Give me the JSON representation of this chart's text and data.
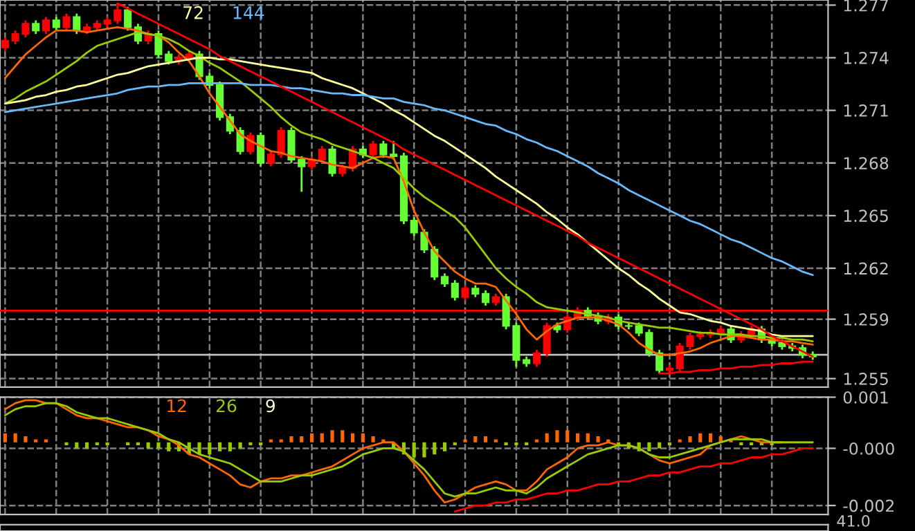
{
  "chart_data": [
    {
      "type": "candlestick",
      "categories": [
        null,
        null,
        null,
        null,
        null,
        null,
        null,
        null,
        null,
        null,
        null,
        null,
        null,
        null,
        null,
        null,
        null,
        null,
        null,
        null,
        null,
        null,
        null,
        null,
        null,
        null,
        null,
        null,
        null,
        null,
        null,
        null,
        null,
        null,
        null,
        null,
        null,
        null,
        null,
        null,
        null,
        null,
        null,
        null,
        null,
        null,
        null,
        null,
        null,
        null,
        null,
        null,
        null,
        null,
        null,
        null,
        null,
        null,
        null,
        null,
        null,
        null,
        null,
        null,
        null,
        null,
        null,
        null,
        null,
        null,
        null,
        null,
        null,
        null,
        null,
        null,
        null,
        null,
        null,
        null
      ],
      "ohlc": [
        [
          1.275,
          1.2756,
          1.2748,
          1.2754
        ],
        [
          1.2754,
          1.276,
          1.2752,
          1.2758
        ],
        [
          1.2758,
          1.2766,
          1.2756,
          1.2764
        ],
        [
          1.2764,
          1.2766,
          1.2758,
          1.276
        ],
        [
          1.276,
          1.2768,
          1.2758,
          1.2766
        ],
        [
          1.2766,
          1.2768,
          1.276,
          1.2762
        ],
        [
          1.2762,
          1.277,
          1.276,
          1.2768
        ],
        [
          1.2768,
          1.277,
          1.2758,
          1.276
        ],
        [
          1.276,
          1.2764,
          1.2758,
          1.2762
        ],
        [
          1.2762,
          1.2766,
          1.276,
          1.2764
        ],
        [
          1.2764,
          1.2768,
          1.2762,
          1.2766
        ],
        [
          1.2766,
          1.2776,
          1.2764,
          1.2772
        ],
        [
          1.2772,
          1.2774,
          1.276,
          1.2762
        ],
        [
          1.2762,
          1.2764,
          1.2752,
          1.2754
        ],
        [
          1.2754,
          1.276,
          1.2752,
          1.2758
        ],
        [
          1.2758,
          1.276,
          1.2744,
          1.2746
        ],
        [
          1.2746,
          1.2748,
          1.274,
          1.2742
        ],
        [
          1.2742,
          1.2746,
          1.274,
          1.2744
        ],
        [
          1.2744,
          1.2748,
          1.2742,
          1.2746
        ],
        [
          1.2746,
          1.2748,
          1.2731,
          1.2733
        ],
        [
          1.2733,
          1.2735,
          1.2726,
          1.2728
        ],
        [
          1.2728,
          1.273,
          1.2707,
          1.2709
        ],
        [
          1.2709,
          1.2711,
          1.2699,
          1.2701
        ],
        [
          1.2701,
          1.2703,
          1.2687,
          1.2689
        ],
        [
          1.2689,
          1.27,
          1.2687,
          1.2698
        ],
        [
          1.2698,
          1.27,
          1.268,
          1.2682
        ],
        [
          1.2682,
          1.2689,
          1.268,
          1.2687
        ],
        [
          1.2687,
          1.2703,
          1.2685,
          1.2701
        ],
        [
          1.2701,
          1.2703,
          1.2682,
          1.2684
        ],
        [
          1.2684,
          1.2686,
          1.2665,
          1.268
        ],
        [
          1.268,
          1.2686,
          1.2678,
          1.2684
        ],
        [
          1.2684,
          1.2692,
          1.2682,
          1.269
        ],
        [
          1.269,
          1.2692,
          1.2674,
          1.2676
        ],
        [
          1.2676,
          1.2681,
          1.2674,
          1.2679
        ],
        [
          1.2679,
          1.2692,
          1.2677,
          1.269
        ],
        [
          1.269,
          1.2692,
          1.2685,
          1.2687
        ],
        [
          1.2687,
          1.2695,
          1.2685,
          1.2693
        ],
        [
          1.2693,
          1.2695,
          1.2685,
          1.2687
        ],
        [
          1.2687,
          1.2695,
          1.2684,
          1.2686
        ],
        [
          1.2686,
          1.2688,
          1.2646,
          1.2648
        ],
        [
          1.2648,
          1.265,
          1.2639,
          1.2641
        ],
        [
          1.2641,
          1.2643,
          1.2629,
          1.2631
        ],
        [
          1.2631,
          1.2633,
          1.2613,
          1.2615
        ],
        [
          1.2615,
          1.2617,
          1.2609,
          1.2611
        ],
        [
          1.2611,
          1.2613,
          1.2601,
          1.2603
        ],
        [
          1.2603,
          1.261,
          1.2601,
          1.2608
        ],
        [
          1.2608,
          1.261,
          1.2603,
          1.2605
        ],
        [
          1.2605,
          1.2607,
          1.2598,
          1.26
        ],
        [
          1.26,
          1.2605,
          1.2598,
          1.2603
        ],
        [
          1.2603,
          1.2605,
          1.2584,
          1.2586
        ],
        [
          1.2586,
          1.2588,
          1.2562,
          1.2566
        ],
        [
          1.2566,
          1.2568,
          1.2562,
          1.2564
        ],
        [
          1.2564,
          1.2572,
          1.2562,
          1.257
        ],
        [
          1.257,
          1.2588,
          1.2568,
          1.2586
        ],
        [
          1.2586,
          1.2588,
          1.2582,
          1.2584
        ],
        [
          1.2584,
          1.2593,
          1.2582,
          1.2591
        ],
        [
          1.2591,
          1.2597,
          1.2589,
          1.2595
        ],
        [
          1.2595,
          1.2597,
          1.259,
          1.2592
        ],
        [
          1.2592,
          1.2594,
          1.2587,
          1.2589
        ],
        [
          1.2589,
          1.2593,
          1.2587,
          1.2591
        ],
        [
          1.2591,
          1.2593,
          1.2584,
          1.2586
        ],
        [
          1.2586,
          1.2588,
          1.2584,
          1.2586
        ],
        [
          1.2586,
          1.2588,
          1.258,
          1.2582
        ],
        [
          1.2582,
          1.2584,
          1.2568,
          1.257
        ],
        [
          1.257,
          1.2572,
          1.2558,
          1.256
        ],
        [
          1.256,
          1.2563,
          1.2558,
          1.2561
        ],
        [
          1.2561,
          1.2576,
          1.2559,
          1.2574
        ],
        [
          1.2574,
          1.2582,
          1.2572,
          1.258
        ],
        [
          1.258,
          1.2583,
          1.2578,
          1.2581
        ],
        [
          1.2581,
          1.2584,
          1.2579,
          1.2582
        ],
        [
          1.2582,
          1.2586,
          1.258,
          1.2584
        ],
        [
          1.2584,
          1.2586,
          1.2576,
          1.2578
        ],
        [
          1.2578,
          1.2583,
          1.2576,
          1.2581
        ],
        [
          1.2581,
          1.2586,
          1.2579,
          1.2584
        ],
        [
          1.2584,
          1.2586,
          1.2576,
          1.2578
        ],
        [
          1.2578,
          1.258,
          1.2574,
          1.2576
        ],
        [
          1.2576,
          1.2578,
          1.2572,
          1.2574
        ],
        [
          1.2574,
          1.2576,
          1.2571,
          1.2573
        ],
        [
          1.2573,
          1.2575,
          1.2567,
          1.2569
        ],
        [
          1.2569,
          1.2571,
          1.2566,
          1.2568
        ]
      ],
      "colors": [
        "#ff0000",
        "#ff0000",
        "#ff0000",
        "#66ff33",
        "#ff0000",
        "#66ff33",
        "#ff0000",
        "#66ff33",
        "#ff0000",
        "#ff0000",
        "#ff0000",
        "#ff0000",
        "#66ff33",
        "#66ff33",
        "#ff0000",
        "#66ff33",
        "#66ff33",
        "#ff0000",
        "#ff0000",
        "#66ff33",
        "#66ff33",
        "#66ff33",
        "#66ff33",
        "#66ff33",
        "#ff0000",
        "#66ff33",
        "#ff0000",
        "#ff0000",
        "#66ff33",
        "#66ff33",
        "#ff0000",
        "#ff0000",
        "#66ff33",
        "#ff0000",
        "#ff0000",
        "#66ff33",
        "#ff0000",
        "#66ff33",
        "#66ff33",
        "#66ff33",
        "#66ff33",
        "#66ff33",
        "#66ff33",
        "#66ff33",
        "#66ff33",
        "#ff0000",
        "#66ff33",
        "#66ff33",
        "#ff0000",
        "#66ff33",
        "#66ff33",
        "#66ff33",
        "#ff0000",
        "#ff0000",
        "#66ff33",
        "#ff0000",
        "#ff0000",
        "#66ff33",
        "#66ff33",
        "#ff0000",
        "#66ff33",
        "#66ff33",
        "#66ff33",
        "#66ff33",
        "#66ff33",
        "#ff0000",
        "#ff0000",
        "#ff0000",
        "#ff0000",
        "#ff0000",
        "#ff0000",
        "#66ff33",
        "#ff0000",
        "#ff0000",
        "#66ff33",
        "#66ff33",
        "#66ff33",
        "#66ff33",
        "#66ff33",
        "#66ff33"
      ],
      "series": [
        {
          "type": "line",
          "color": "#ff6600",
          "values": [
            1.2732,
            1.2739,
            1.2746,
            1.2751,
            1.2756,
            1.276,
            1.276,
            1.276,
            1.2759,
            1.276,
            1.2761,
            1.2762,
            1.2761,
            1.276,
            1.2758,
            1.2757,
            1.2753,
            1.2747,
            1.2742,
            1.2733,
            1.2723,
            1.2715,
            1.2707,
            1.2699,
            1.2695,
            1.2692,
            1.2689,
            1.2688,
            1.2686,
            1.2685,
            1.2684,
            1.2683,
            1.2681,
            1.268,
            1.2679,
            1.2682,
            1.2685,
            1.2686,
            1.2685,
            1.2671,
            1.2654,
            1.2641,
            1.263,
            1.2624,
            1.2618,
            1.2614,
            1.2611,
            1.2611,
            1.2609,
            1.2601,
            1.2593,
            1.2584,
            1.2578,
            1.2583,
            1.2587,
            1.2589,
            1.2591,
            1.2591,
            1.2591,
            1.2589,
            1.2587,
            1.2582,
            1.2576,
            1.2572,
            1.2569,
            1.2569,
            1.257,
            1.2571,
            1.2573,
            1.2576,
            1.2578,
            1.258,
            1.258,
            1.2579,
            1.2578,
            1.2578,
            1.2577,
            1.2577,
            1.2576,
            1.2575
          ]
        },
        {
          "type": "line",
          "color": "#99cc00",
          "values": [
            1.2717,
            1.272,
            1.2724,
            1.2727,
            1.273,
            1.2734,
            1.2738,
            1.2742,
            1.2747,
            1.2751,
            1.2753,
            1.2755,
            1.2757,
            1.2759,
            1.2758,
            1.2757,
            1.2755,
            1.2752,
            1.2748,
            1.2745,
            1.2741,
            1.2738,
            1.2734,
            1.273,
            1.2725,
            1.272,
            1.2715,
            1.2709,
            1.2704,
            1.27,
            1.2698,
            1.2696,
            1.2693,
            1.2691,
            1.2689,
            1.2687,
            1.2685,
            1.2682,
            1.2679,
            1.2673,
            1.2667,
            1.2662,
            1.2658,
            1.2654,
            1.265,
            1.2644,
            1.2636,
            1.2628,
            1.262,
            1.2614,
            1.2609,
            1.2605,
            1.26,
            1.2597,
            1.2596,
            1.2595,
            1.2594,
            1.2593,
            1.2592,
            1.2591,
            1.2589,
            1.2588,
            1.2587,
            1.2586,
            1.2585,
            1.2585,
            1.2584,
            1.2583,
            1.2582,
            1.2582,
            1.2581,
            1.2581,
            1.2581,
            1.258,
            1.258,
            1.2579,
            1.2579,
            1.2578,
            1.2578,
            1.2577
          ]
        },
        {
          "type": "line",
          "name": "72",
          "color": "#ffff99",
          "values": [
            1.2717,
            1.2718,
            1.2719,
            1.2721,
            1.2722,
            1.2724,
            1.2725,
            1.2727,
            1.2728,
            1.273,
            1.2732,
            1.2734,
            1.2735,
            1.2737,
            1.2739,
            1.274,
            1.2741,
            1.2742,
            1.2743,
            1.2744,
            1.2744,
            1.2743,
            1.2743,
            1.2742,
            1.2741,
            1.274,
            1.2739,
            1.2738,
            1.2737,
            1.2736,
            1.2735,
            1.2732,
            1.273,
            1.2728,
            1.2726,
            1.2723,
            1.272,
            1.2717,
            1.2713,
            1.271,
            1.2706,
            1.2702,
            1.2698,
            1.2695,
            1.2691,
            1.2687,
            1.2683,
            1.2679,
            1.2674,
            1.267,
            1.2666,
            1.2662,
            1.2658,
            1.2653,
            1.2649,
            1.2644,
            1.264,
            1.2635,
            1.263,
            1.2625,
            1.262,
            1.2616,
            1.2611,
            1.2607,
            1.2602,
            1.2598,
            1.2594,
            1.2593,
            1.2591,
            1.2589,
            1.2588,
            1.2586,
            1.2585,
            1.2584,
            1.2583,
            1.2581,
            1.258,
            1.258,
            1.258,
            1.258
          ]
        },
        {
          "type": "line",
          "name": "144",
          "color": "#66bbff",
          "values": [
            1.2712,
            1.2713,
            1.2714,
            1.2715,
            1.2716,
            1.2717,
            1.2718,
            1.2719,
            1.272,
            1.2721,
            1.2722,
            1.2723,
            1.2725,
            1.2726,
            1.2727,
            1.2727,
            1.2728,
            1.2728,
            1.2729,
            1.2729,
            1.2729,
            1.2729,
            1.2729,
            1.2729,
            1.2728,
            1.2728,
            1.2728,
            1.2727,
            1.2726,
            1.2726,
            1.2725,
            1.2724,
            1.2723,
            1.2723,
            1.2722,
            1.2722,
            1.2721,
            1.272,
            1.272,
            1.2718,
            1.2717,
            1.2716,
            1.2714,
            1.2713,
            1.2711,
            1.2709,
            1.2707,
            1.2705,
            1.2704,
            1.2701,
            1.2699,
            1.2696,
            1.2694,
            1.2691,
            1.2689,
            1.2686,
            1.2683,
            1.268,
            1.2676,
            1.2673,
            1.267,
            1.2666,
            1.2663,
            1.266,
            1.2657,
            1.2654,
            1.2651,
            1.2648,
            1.2646,
            1.2643,
            1.264,
            1.2637,
            1.2635,
            1.2632,
            1.2629,
            1.2626,
            1.2624,
            1.2621,
            1.2618,
            1.2616
          ]
        },
        {
          "type": "line",
          "color": "#ff0000",
          "values": [
            null,
            null,
            null,
            null,
            null,
            null,
            null,
            null,
            null,
            null,
            null,
            1.2776,
            1.2773,
            1.277,
            1.2767,
            1.2764,
            1.2761,
            1.2758,
            1.2755,
            1.2752,
            1.2749,
            1.2745,
            1.2742,
            1.2739,
            1.2736,
            1.2733,
            1.273,
            1.2727,
            1.2724,
            1.2721,
            1.2718,
            1.2715,
            1.2712,
            1.2709,
            1.2706,
            1.2703,
            1.27,
            1.2697,
            1.2694,
            1.269,
            1.2687,
            1.2684,
            1.2681,
            1.2678,
            1.2675,
            1.2672,
            1.2669,
            1.2666,
            1.2663,
            1.266,
            1.2657,
            1.2654,
            1.2651,
            1.2648,
            1.2645,
            1.2642,
            1.2639,
            1.2635,
            1.2632,
            1.2629,
            1.2626,
            1.2623,
            1.262,
            1.2617,
            1.2614,
            1.2611,
            1.2608,
            1.2605,
            1.2602,
            1.2599,
            1.2596,
            1.2593,
            1.259,
            1.2587,
            1.2584,
            1.258,
            1.2577,
            1.2574,
            1.2571,
            1.2568
          ]
        },
        {
          "type": "line",
          "color": "#ff0000",
          "values": [
            null,
            null,
            null,
            null,
            null,
            null,
            null,
            null,
            null,
            null,
            null,
            null,
            null,
            null,
            null,
            null,
            null,
            null,
            null,
            null,
            null,
            null,
            null,
            null,
            null,
            null,
            null,
            null,
            null,
            null,
            null,
            null,
            null,
            null,
            null,
            null,
            null,
            null,
            null,
            null,
            null,
            null,
            null,
            null,
            null,
            null,
            null,
            null,
            null,
            null,
            null,
            null,
            null,
            null,
            null,
            null,
            null,
            null,
            null,
            null,
            null,
            null,
            null,
            null,
            1.2558,
            1.2558,
            1.2559,
            1.2559,
            1.256,
            1.256,
            1.2561,
            1.2561,
            1.2562,
            1.2562,
            1.2563,
            1.2563,
            1.2564,
            1.2564,
            1.2565,
            1.2565
          ]
        }
      ],
      "ref_lines": [
        {
          "axis": "y",
          "value": 1.2595,
          "color": "#ff0000"
        },
        {
          "axis": "y",
          "value": 1.2569,
          "color": "#c0c0c0"
        }
      ],
      "ylim": [
        1.255,
        1.2778
      ],
      "yticks": [
        {
          "value": 1.2775,
          "label": "1.277"
        },
        {
          "value": 1.2744,
          "label": "1.274"
        },
        {
          "value": 1.2713,
          "label": "1.271"
        },
        {
          "value": 1.2682,
          "label": "1.268"
        },
        {
          "value": 1.2651,
          "label": "1.265"
        },
        {
          "value": 1.262,
          "label": "1.262"
        },
        {
          "value": 1.259,
          "label": "1.259"
        },
        {
          "value": 1.2555,
          "label": "1.255"
        }
      ],
      "tick_labels": "y",
      "grid": true
    },
    {
      "type": "bar",
      "categories": [
        null,
        null,
        null,
        null,
        null,
        null,
        null,
        null,
        null,
        null,
        null,
        null,
        null,
        null,
        null,
        null,
        null,
        null,
        null,
        null,
        null,
        null,
        null,
        null,
        null,
        null,
        null,
        null,
        null,
        null,
        null,
        null,
        null,
        null,
        null,
        null,
        null,
        null,
        null,
        null,
        null,
        null,
        null,
        null,
        null,
        null,
        null,
        null,
        null,
        null,
        null,
        null,
        null,
        null,
        null,
        null,
        null,
        null,
        null,
        null,
        null,
        null,
        null,
        null,
        null,
        null,
        null,
        null,
        null,
        null,
        null,
        null,
        null,
        null,
        null,
        null,
        null,
        null,
        null,
        null
      ],
      "values": [
        0.0003,
        0.0003,
        0.0002,
        0.0001,
        0.0001,
        0.0,
        -0.0001,
        -0.0002,
        -0.0002,
        -0.0001,
        -0.0001,
        0.0,
        -0.0001,
        -0.0001,
        -0.0002,
        -0.0002,
        -0.0003,
        -0.0003,
        -0.0004,
        -0.0004,
        -0.0004,
        -0.0003,
        -0.0003,
        -0.0002,
        -0.0001,
        -0.0001,
        0.0001,
        0.0001,
        0.0002,
        0.0002,
        0.0003,
        0.0003,
        0.0004,
        0.0004,
        0.0003,
        0.0003,
        0.0002,
        0.0001,
        -0.0002,
        -0.0004,
        -0.0005,
        -0.0005,
        -0.0004,
        -0.0003,
        -0.0001,
        0.0001,
        0.0002,
        0.0002,
        0.0001,
        -0.0001,
        -0.0001,
        -0.0001,
        0.0001,
        0.0003,
        0.0004,
        0.0004,
        0.0003,
        0.0003,
        0.0002,
        0.0001,
        -0.0001,
        -0.0002,
        -0.0003,
        -0.0003,
        -0.0002,
        -0.0001,
        0.0001,
        0.0002,
        0.0003,
        0.0003,
        0.0002,
        0.0001,
        -0.0001,
        -0.0001,
        -0.0001,
        -0.0001,
        0.0,
        0.0,
        0.0,
        0.0
      ],
      "colors": [
        "#ff6600",
        "#ff6600",
        "#ff6600",
        "#ff6600",
        "#ff6600",
        "#ff6600",
        "#99cc00",
        "#99cc00",
        "#99cc00",
        "#99cc00",
        "#99cc00",
        "#99cc00",
        "#99cc00",
        "#99cc00",
        "#99cc00",
        "#99cc00",
        "#99cc00",
        "#99cc00",
        "#99cc00",
        "#99cc00",
        "#99cc00",
        "#99cc00",
        "#99cc00",
        "#99cc00",
        "#99cc00",
        "#99cc00",
        "#ff6600",
        "#ff6600",
        "#ff6600",
        "#ff6600",
        "#ff6600",
        "#ff6600",
        "#ff6600",
        "#ff6600",
        "#ff6600",
        "#ff6600",
        "#ff6600",
        "#ff6600",
        "#99cc00",
        "#99cc00",
        "#99cc00",
        "#99cc00",
        "#99cc00",
        "#99cc00",
        "#99cc00",
        "#ff6600",
        "#ff6600",
        "#ff6600",
        "#ff6600",
        "#99cc00",
        "#99cc00",
        "#99cc00",
        "#ff6600",
        "#ff6600",
        "#ff6600",
        "#ff6600",
        "#ff6600",
        "#ff6600",
        "#ff6600",
        "#ff6600",
        "#99cc00",
        "#99cc00",
        "#99cc00",
        "#99cc00",
        "#99cc00",
        "#99cc00",
        "#ff6600",
        "#ff6600",
        "#ff6600",
        "#ff6600",
        "#ff6600",
        "#ff6600",
        "#99cc00",
        "#99cc00",
        "#99cc00",
        "#99cc00",
        "#99cc00",
        "#99cc00",
        "#99cc00",
        "#99cc00"
      ],
      "series": [
        {
          "type": "line",
          "name": "12",
          "color": "#ff6600",
          "values": [
            0.0011,
            0.0013,
            0.0014,
            0.0014,
            0.0013,
            0.0013,
            0.0011,
            0.0009,
            0.0008,
            0.0008,
            0.0007,
            0.0006,
            0.0005,
            0.0005,
            0.0004,
            0.0002,
            0.0001,
            -0.0001,
            -0.0004,
            -0.0005,
            -0.0007,
            -0.0009,
            -0.0011,
            -0.0014,
            -0.0015,
            -0.0013,
            -0.0012,
            -0.0012,
            -0.0011,
            -0.0011,
            -0.001,
            -0.0009,
            -0.0008,
            -0.0006,
            -0.0004,
            -0.0002,
            -0.0001,
            0.0,
            0.0,
            -0.0003,
            -0.0007,
            -0.0011,
            -0.0016,
            -0.002,
            -0.0019,
            -0.0017,
            -0.0015,
            -0.0014,
            -0.0013,
            -0.0014,
            -0.0016,
            -0.0016,
            -0.0013,
            -0.0009,
            -0.0007,
            -0.0005,
            -0.0002,
            -0.0001,
            -0.0001,
            0.0,
            -0.0001,
            -0.0001,
            -0.0002,
            -0.0004,
            -0.0006,
            -0.0007,
            -0.0006,
            -0.0005,
            -0.0004,
            -0.0001,
            0.0,
            0.0001,
            0.0002,
            0.0001,
            0.0,
            0.0,
            0.0,
            null,
            null,
            null
          ]
        },
        {
          "type": "line",
          "name": "26",
          "color": "#99cc00",
          "values": [
            0.0009,
            0.0011,
            0.0012,
            0.0012,
            0.0013,
            0.0013,
            0.0012,
            0.001,
            0.0009,
            0.0008,
            0.0008,
            0.0007,
            0.0006,
            0.0005,
            0.0004,
            0.0003,
            0.0001,
            0.0,
            -0.0002,
            -0.0004,
            -0.0005,
            -0.0006,
            -0.0007,
            -0.0009,
            -0.0011,
            -0.0013,
            -0.0013,
            -0.0013,
            -0.0012,
            -0.0011,
            -0.0011,
            -0.001,
            -0.0009,
            -0.0008,
            -0.0006,
            -0.0004,
            -0.0003,
            -0.0002,
            -0.0002,
            -0.0003,
            -0.0006,
            -0.0009,
            -0.0013,
            -0.0017,
            -0.0018,
            -0.0017,
            -0.0017,
            -0.0016,
            -0.0015,
            -0.0016,
            -0.0016,
            -0.0017,
            -0.0015,
            -0.0012,
            -0.001,
            -0.0008,
            -0.0006,
            -0.0004,
            -0.0003,
            -0.0002,
            -0.0001,
            -0.0001,
            -0.0002,
            -0.0004,
            -0.0005,
            -0.0005,
            -0.0004,
            -0.0003,
            -0.0002,
            -0.0001,
            0.0,
            0.0001,
            0.0001,
            0.0001,
            0.0001,
            0.0,
            0.0,
            0.0,
            0.0,
            0.0
          ]
        },
        {
          "type": "line",
          "color": "#ff0000",
          "values": [
            null,
            null,
            null,
            null,
            null,
            null,
            null,
            null,
            null,
            null,
            null,
            null,
            null,
            null,
            null,
            null,
            null,
            null,
            null,
            null,
            null,
            null,
            null,
            null,
            null,
            null,
            null,
            null,
            null,
            null,
            null,
            null,
            null,
            null,
            null,
            null,
            null,
            null,
            null,
            null,
            null,
            null,
            null,
            null,
            -0.0023,
            -0.0022,
            -0.0021,
            -0.0021,
            -0.002,
            -0.002,
            -0.0019,
            -0.0019,
            -0.0018,
            -0.0017,
            -0.0017,
            -0.0016,
            -0.0016,
            -0.0015,
            -0.0014,
            -0.0014,
            -0.0013,
            -0.0013,
            -0.0012,
            -0.0011,
            -0.0011,
            -0.001,
            -0.001,
            -0.0009,
            -0.0008,
            -0.0008,
            -0.0007,
            -0.0007,
            -0.0006,
            -0.0005,
            -0.0005,
            -0.0004,
            -0.0004,
            -0.0003,
            -0.0002,
            -0.0002
          ]
        }
      ],
      "annotations": [
        "9"
      ],
      "ylim": [
        -0.0024,
        0.0015
      ],
      "yticks": [
        {
          "value": 0.0015,
          "label": "0.001"
        },
        {
          "value": -0.0002,
          "label": "-0.000"
        },
        {
          "value": -0.0021,
          "label": "-0.002"
        }
      ],
      "tick_labels": "y",
      "grid": true
    },
    {
      "type": "other",
      "annotations": [
        "41.0"
      ]
    }
  ]
}
